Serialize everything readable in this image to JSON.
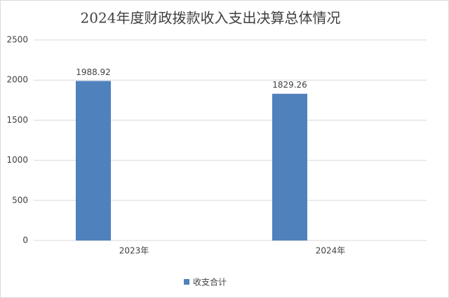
{
  "chart_data": {
    "type": "bar",
    "title": "2024年度财政拨款收入支出决算总体情况",
    "categories": [
      "2023年",
      "2024年"
    ],
    "series": [
      {
        "name": "收支合计",
        "color": "#4f81bd",
        "values": [
          1988.92,
          1829.26
        ]
      }
    ],
    "ylim": [
      0,
      2500
    ],
    "yticks": [
      0,
      500,
      1000,
      1500,
      2000,
      2500
    ],
    "grid": true,
    "legend": "bottom"
  }
}
